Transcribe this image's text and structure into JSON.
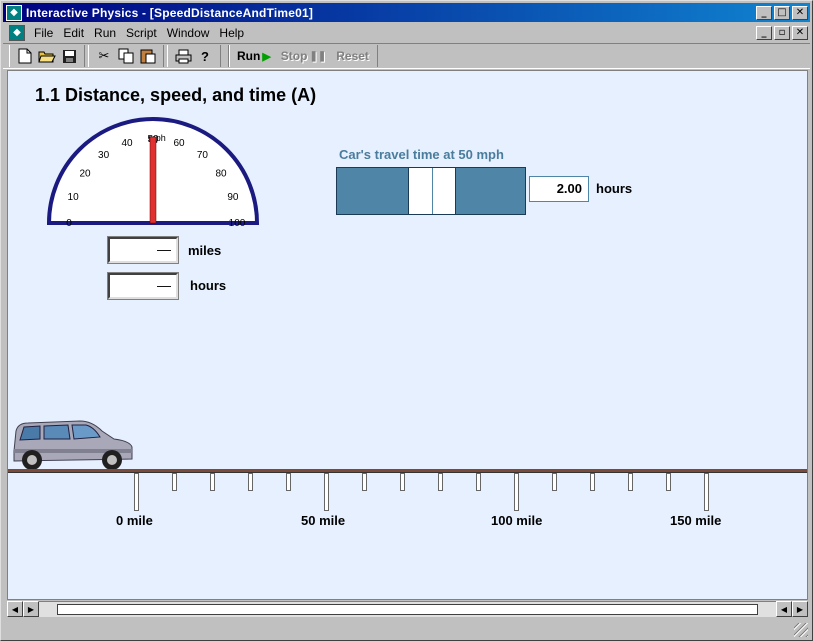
{
  "window": {
    "title": "Interactive Physics - [SpeedDistanceAndTime01]",
    "caption_buttons": {
      "minimize": "_",
      "maximize": "□",
      "close": "✕"
    },
    "doc_buttons": {
      "minimize": "_",
      "restore": "▫",
      "close": "✕"
    }
  },
  "menu": [
    {
      "label": "File"
    },
    {
      "label": "Edit"
    },
    {
      "label": "Run"
    },
    {
      "label": "Script"
    },
    {
      "label": "Window"
    },
    {
      "label": "Help"
    }
  ],
  "toolbar": {
    "icons": [
      "new-file-icon",
      "open-folder-icon",
      "save-icon",
      "cut-icon",
      "copy-icon",
      "paste-icon",
      "print-icon",
      "help-icon"
    ],
    "run_label": "Run",
    "stop_label": "Stop",
    "reset_label": "Reset"
  },
  "simulation": {
    "heading": "1.1 Distance, speed, and time (A)",
    "speedometer": {
      "unit": "mph",
      "ticks": [
        "0",
        "10",
        "20",
        "30",
        "40",
        "50",
        "60",
        "70",
        "80",
        "90",
        "100"
      ],
      "value": 50
    },
    "distance_readout": {
      "value": "—",
      "unit": "miles"
    },
    "time_readout": {
      "value": "—",
      "unit": "hours"
    },
    "slider": {
      "title": "Car's travel time at 50 mph",
      "value": "2.00",
      "unit": "hours"
    },
    "road": {
      "labels": [
        "0 mile",
        "50 mile",
        "100 mile",
        "150 mile"
      ]
    }
  }
}
